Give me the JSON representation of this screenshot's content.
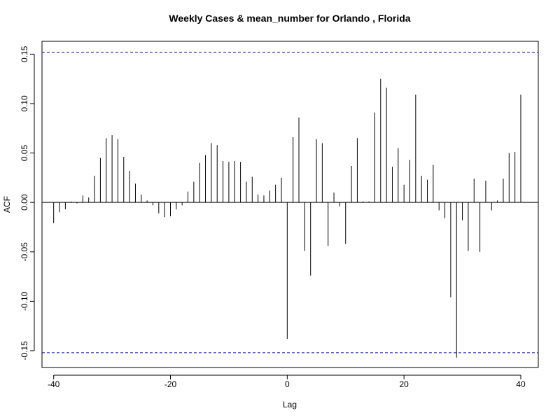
{
  "chart_data": {
    "type": "bar",
    "title": "Weekly Cases & mean_number for Orlando , Florida",
    "xlabel": "Lag",
    "ylabel": "ACF",
    "xlim": [
      -42,
      43
    ],
    "ylim": [
      -0.167,
      0.163
    ],
    "x_ticks": [
      -40,
      -20,
      0,
      20,
      40
    ],
    "x_tick_labels": [
      "-40",
      "-20",
      "0",
      "20",
      "40"
    ],
    "y_ticks": [
      -0.15,
      -0.1,
      -0.05,
      0.0,
      0.05,
      0.1,
      0.15
    ],
    "y_tick_labels": [
      "-0.15",
      "-0.10",
      "-0.05",
      "0.00",
      "0.05",
      "0.10",
      "0.15"
    ],
    "confidence_limit": 0.152,
    "colors": {
      "spike": "#000000",
      "ci_line": "#0000cc",
      "zero_line": "#000000",
      "frame": "#000000"
    },
    "lags": [
      -40,
      -39,
      -38,
      -37,
      -36,
      -35,
      -34,
      -33,
      -32,
      -31,
      -30,
      -29,
      -28,
      -27,
      -26,
      -25,
      -24,
      -23,
      -22,
      -21,
      -20,
      -19,
      -18,
      -17,
      -16,
      -15,
      -14,
      -13,
      -12,
      -11,
      -10,
      -9,
      -8,
      -7,
      -6,
      -5,
      -4,
      -3,
      -2,
      -1,
      0,
      1,
      2,
      3,
      4,
      5,
      6,
      7,
      8,
      9,
      10,
      11,
      12,
      13,
      14,
      15,
      16,
      17,
      18,
      19,
      20,
      21,
      22,
      23,
      24,
      25,
      26,
      27,
      28,
      29,
      30,
      31,
      32,
      33,
      34,
      35,
      36,
      37,
      38,
      39,
      40
    ],
    "values": [
      -0.021,
      -0.01,
      -0.007,
      0.001,
      -0.001,
      0.007,
      0.005,
      0.027,
      0.045,
      0.065,
      0.068,
      0.064,
      0.046,
      0.032,
      0.019,
      0.008,
      0.002,
      -0.003,
      -0.011,
      -0.015,
      -0.014,
      -0.007,
      -0.003,
      0.011,
      0.021,
      0.04,
      0.048,
      0.06,
      0.058,
      0.042,
      0.041,
      0.042,
      0.041,
      0.021,
      0.026,
      0.008,
      0.007,
      0.012,
      0.018,
      0.025,
      -0.138,
      0.066,
      0.086,
      -0.049,
      -0.074,
      0.064,
      0.06,
      -0.044,
      0.01,
      -0.004,
      -0.042,
      0.037,
      0.065,
      0.001,
      0.001,
      0.091,
      0.125,
      0.116,
      0.036,
      0.055,
      0.018,
      0.043,
      0.109,
      0.027,
      0.023,
      0.038,
      -0.008,
      -0.016,
      -0.096,
      -0.157,
      -0.018,
      -0.049,
      0.024,
      -0.05,
      0.022,
      -0.008,
      0.002,
      0.024,
      0.05,
      0.051,
      0.109
    ]
  }
}
